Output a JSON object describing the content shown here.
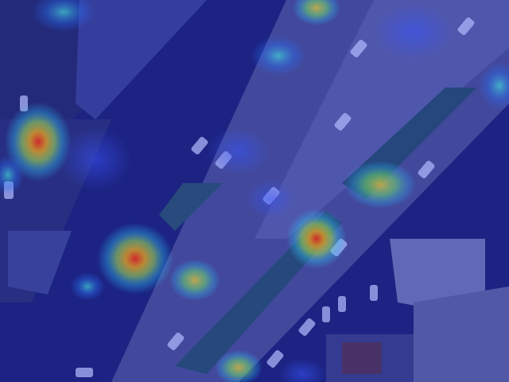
{
  "image": {
    "kind": "aerial-photo-heatmap-overlay",
    "overlay_tint": "#1f2bd6",
    "heat_colors": {
      "low": "#1f3cff",
      "mid": "#37e0d0",
      "high": "#ffd21f",
      "peak": "#ff2a00"
    },
    "colors": {
      "road": "#5a6172",
      "median_green": "#2f6b3a",
      "building_roof": "#8c93a3",
      "dark_area": "#2a2f55"
    }
  }
}
